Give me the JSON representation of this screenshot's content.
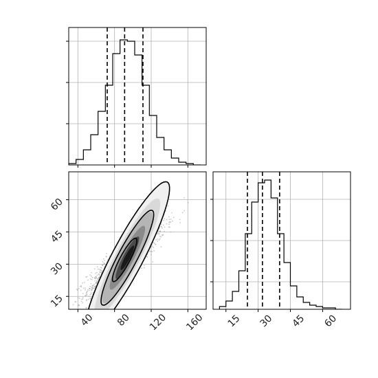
{
  "chart_data": [
    {
      "type": "histogram",
      "panel": "marginal-x",
      "xlim": [
        30,
        180
      ],
      "ylim": [
        0,
        1
      ],
      "grid": true,
      "quantiles": [
        72,
        91,
        111
      ],
      "bin_edges": [
        30,
        38,
        46,
        54,
        62,
        70,
        78,
        86,
        94,
        102,
        110,
        118,
        126,
        134,
        142,
        150,
        158,
        166,
        174
      ],
      "counts": [
        0.01,
        0.04,
        0.11,
        0.22,
        0.39,
        0.58,
        0.81,
        0.91,
        0.9,
        0.8,
        0.58,
        0.36,
        0.2,
        0.11,
        0.05,
        0.02,
        0.01,
        0.0
      ],
      "yticks": [
        0.3,
        0.6,
        0.9
      ],
      "xticks": [
        40,
        80,
        120,
        160
      ]
    },
    {
      "type": "scatter",
      "panel": "joint",
      "xlim": [
        30,
        180
      ],
      "ylim": [
        9,
        73
      ],
      "grid": true,
      "xticks": [
        40,
        80,
        120,
        160
      ],
      "yticks": [
        15,
        30,
        45,
        60
      ],
      "xtick_labels": [
        "40",
        "80",
        "120",
        "160"
      ],
      "ytick_labels": [
        "15",
        "30",
        "45",
        "60"
      ],
      "contours": [
        {
          "cx": 94,
          "cy": 33,
          "rx": 56,
          "ry": 6.3,
          "angle_deg": 39
        },
        {
          "cx": 94,
          "cy": 33,
          "rx": 35,
          "ry": 3.9,
          "angle_deg": 39
        },
        {
          "cx": 91,
          "cy": 32,
          "rx": 16,
          "ry": 2.0,
          "angle_deg": 39
        }
      ]
    },
    {
      "type": "histogram",
      "panel": "marginal-y",
      "xlim": [
        9,
        73
      ],
      "ylim": [
        0,
        1
      ],
      "grid": true,
      "quantiles": [
        25,
        32,
        40
      ],
      "bin_edges": [
        12,
        15,
        18,
        21,
        24,
        27,
        30,
        33,
        36,
        39,
        42,
        45,
        48,
        51,
        54,
        57,
        60,
        63,
        66,
        69
      ],
      "counts": [
        0.02,
        0.06,
        0.13,
        0.28,
        0.55,
        0.78,
        0.92,
        0.94,
        0.81,
        0.55,
        0.34,
        0.17,
        0.09,
        0.05,
        0.03,
        0.02,
        0.01,
        0.01,
        0.0
      ],
      "yticks": [
        0.2,
        0.5,
        0.8
      ],
      "xticks": [
        15,
        30,
        45,
        60
      ],
      "xtick_labels": [
        "15",
        "30",
        "45",
        "60"
      ]
    }
  ]
}
